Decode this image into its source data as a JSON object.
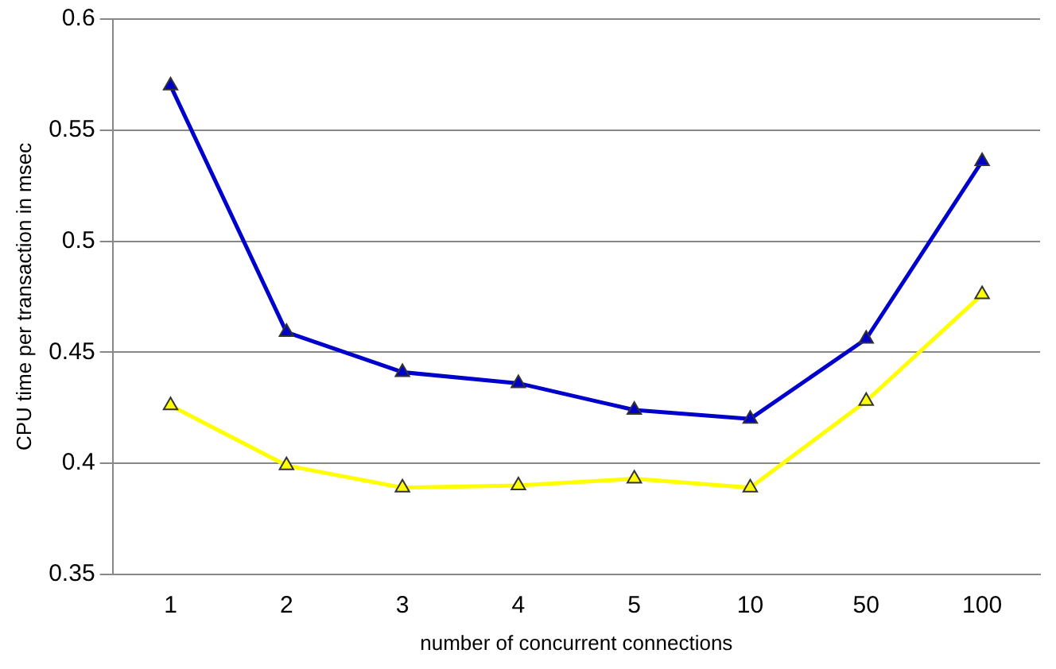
{
  "chart_data": {
    "type": "line",
    "xlabel": "number of concurrent connections",
    "ylabel": "CPU time per transaction in msec",
    "categories": [
      "1",
      "2",
      "3",
      "4",
      "5",
      "10",
      "50",
      "100"
    ],
    "series": [
      {
        "color": "#0000cc",
        "values": [
          0.57,
          0.459,
          0.441,
          0.436,
          0.424,
          0.42,
          0.456,
          0.536
        ]
      },
      {
        "color": "#ffff00",
        "values": [
          0.426,
          0.399,
          0.389,
          0.39,
          0.393,
          0.389,
          0.428,
          0.476
        ]
      }
    ],
    "ylim": [
      0.35,
      0.6
    ],
    "yticks": [
      0.35,
      0.4,
      0.45,
      0.5,
      0.55,
      0.6
    ],
    "grid": "y",
    "marker": "triangle",
    "line_style": "solid"
  }
}
